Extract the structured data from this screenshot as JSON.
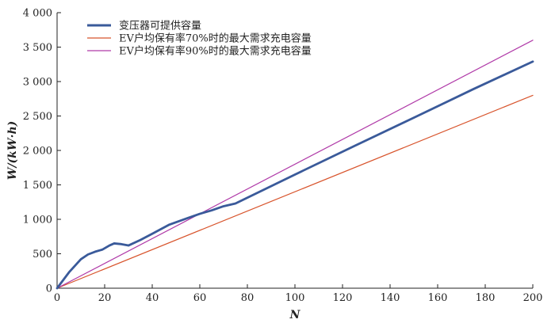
{
  "chart_data": {
    "type": "line",
    "title": "",
    "xlabel": "N",
    "ylabel": "W/(kW·h)",
    "xlim": [
      0,
      200
    ],
    "ylim": [
      0,
      4000
    ],
    "xticks": [
      0,
      20,
      40,
      60,
      80,
      100,
      120,
      140,
      160,
      180,
      200
    ],
    "xtick_labels": [
      "0",
      "20",
      "40",
      "60",
      "80",
      "100",
      "120",
      "140",
      "160",
      "180",
      "200"
    ],
    "yticks": [
      0,
      500,
      1000,
      1500,
      2000,
      2500,
      3000,
      3500,
      4000
    ],
    "ytick_labels": [
      "0",
      "500",
      "1 000",
      "1 500",
      "2 000",
      "2 500",
      "3 000",
      "3 500",
      "4 000"
    ],
    "grid": false,
    "legend_position": "top-left",
    "series": [
      {
        "name": "变压器可提供容量",
        "color": "#3a5a9a",
        "line_width": "thick",
        "x": [
          0,
          5,
          10,
          13,
          16,
          19,
          22,
          24,
          27,
          30,
          35,
          40,
          47,
          55,
          60,
          65,
          70,
          75,
          100,
          125,
          150,
          175,
          200
        ],
        "y": [
          0,
          230,
          420,
          490,
          530,
          560,
          620,
          650,
          640,
          620,
          700,
          790,
          920,
          1020,
          1080,
          1130,
          1190,
          1230,
          1650,
          2065,
          2475,
          2890,
          3290
        ]
      },
      {
        "name": "EV户均保有率70%时的最大需求充电容量",
        "color": "#d8542c",
        "line_width": "thin",
        "x": [
          0,
          200
        ],
        "y": [
          0,
          2800
        ]
      },
      {
        "name": "EV户均保有率90%时的最大需求充电容量",
        "color": "#b03aa8",
        "line_width": "thin",
        "x": [
          0,
          200
        ],
        "y": [
          0,
          3600
        ]
      }
    ]
  }
}
